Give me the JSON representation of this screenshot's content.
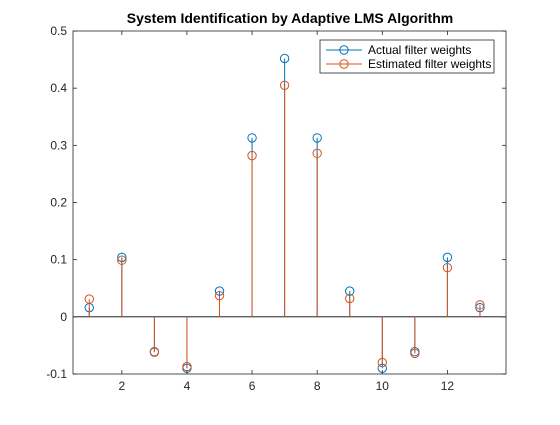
{
  "chart_data": {
    "type": "stem",
    "title": "System Identification by Adaptive LMS Algorithm",
    "xlabel": "",
    "ylabel": "",
    "x": [
      1,
      2,
      3,
      4,
      5,
      6,
      7,
      8,
      9,
      10,
      11,
      12,
      13
    ],
    "xlim": [
      0.5,
      13.8
    ],
    "ylim": [
      -0.1,
      0.5
    ],
    "x_ticks": [
      2,
      4,
      6,
      8,
      10,
      12
    ],
    "y_ticks": [
      -0.1,
      0,
      0.1,
      0.2,
      0.3,
      0.4,
      0.5
    ],
    "y_tick_labels": [
      "-0.1",
      "0",
      "0.1",
      "0.2",
      "0.3",
      "0.4",
      "0.5"
    ],
    "baseline": 0,
    "grid": false,
    "legend_location": "top-right",
    "series": [
      {
        "name": "Actual filter weights",
        "color": "#0072BD",
        "marker": "circle-open",
        "values": [
          0.016,
          0.104,
          -0.061,
          -0.09,
          0.045,
          0.313,
          0.452,
          0.313,
          0.045,
          -0.09,
          -0.061,
          0.104,
          0.016
        ]
      },
      {
        "name": "Estimated filter weights",
        "color": "#D95319",
        "marker": "circle-open",
        "values": [
          0.031,
          0.099,
          -0.062,
          -0.087,
          0.037,
          0.282,
          0.405,
          0.286,
          0.032,
          -0.08,
          -0.064,
          0.086,
          0.021
        ]
      }
    ]
  }
}
